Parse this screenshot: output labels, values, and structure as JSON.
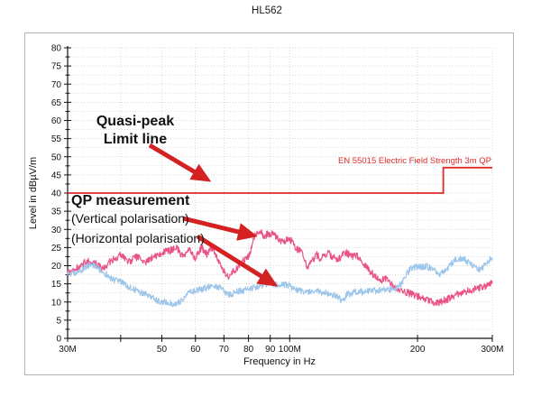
{
  "title": "HL562",
  "chart_data": {
    "type": "line",
    "xscale": "log",
    "xlabel": "Frequency in Hz",
    "ylabel": "Level in dBµV/m",
    "xlim_mhz": [
      30,
      300
    ],
    "ylim": [
      0,
      80
    ],
    "y_tick_step": 5,
    "y_minor_step": 2.5,
    "grid": "dotted",
    "x_ticks": [
      {
        "mhz": 30,
        "label": "30M"
      },
      {
        "mhz": 40,
        "label": ""
      },
      {
        "mhz": 50,
        "label": "50"
      },
      {
        "mhz": 60,
        "label": "60"
      },
      {
        "mhz": 70,
        "label": "70"
      },
      {
        "mhz": 80,
        "label": "80"
      },
      {
        "mhz": 90,
        "label": "90"
      },
      {
        "mhz": 100,
        "label": "100M"
      },
      {
        "mhz": 200,
        "label": "200"
      },
      {
        "mhz": 300,
        "label": "300M"
      }
    ],
    "limit": {
      "label": "EN 55015 Electric Field Strength 3m QP",
      "color": "#e02a2a",
      "points_mhz_db": [
        [
          30,
          40
        ],
        [
          230,
          40
        ],
        [
          230,
          47
        ],
        [
          300,
          47
        ]
      ]
    },
    "series": [
      {
        "name": "QP measurement (Vertical polarisation)",
        "color": "#ea5287",
        "noise_db": 1.0,
        "points_mhz_db": [
          [
            30,
            18
          ],
          [
            31,
            19
          ],
          [
            32,
            19.5
          ],
          [
            33,
            21
          ],
          [
            34,
            21.5
          ],
          [
            35,
            20.5
          ],
          [
            36,
            19.5
          ],
          [
            37,
            20
          ],
          [
            38,
            21.5
          ],
          [
            39,
            22
          ],
          [
            40,
            23
          ],
          [
            41,
            22
          ],
          [
            42,
            21
          ],
          [
            43,
            22
          ],
          [
            44,
            22.5
          ],
          [
            45,
            21.5
          ],
          [
            46,
            21
          ],
          [
            47,
            22
          ],
          [
            48,
            22.5
          ],
          [
            50,
            23.5
          ],
          [
            52,
            24
          ],
          [
            54,
            25
          ],
          [
            55,
            24
          ],
          [
            56,
            22.5
          ],
          [
            58,
            24.5
          ],
          [
            60,
            22
          ],
          [
            61,
            23.5
          ],
          [
            62,
            25
          ],
          [
            63,
            24
          ],
          [
            64,
            23
          ],
          [
            65,
            24.5
          ],
          [
            66,
            24.5
          ],
          [
            67,
            23
          ],
          [
            68,
            21
          ],
          [
            70,
            18.5
          ],
          [
            72,
            17
          ],
          [
            74,
            18.5
          ],
          [
            76,
            20
          ],
          [
            78,
            21.5
          ],
          [
            80,
            22.5
          ],
          [
            81,
            24
          ],
          [
            82,
            26.5
          ],
          [
            83,
            28.5
          ],
          [
            84,
            29
          ],
          [
            85,
            29.5
          ],
          [
            86,
            29
          ],
          [
            87,
            28
          ],
          [
            88,
            28.5
          ],
          [
            90,
            29
          ],
          [
            92,
            28.5
          ],
          [
            94,
            27.5
          ],
          [
            96,
            26.5
          ],
          [
            98,
            27
          ],
          [
            100,
            27.5
          ],
          [
            102,
            26
          ],
          [
            104,
            24.5
          ],
          [
            106,
            24.5
          ],
          [
            108,
            22
          ],
          [
            110,
            19.5
          ],
          [
            112,
            21
          ],
          [
            114,
            22
          ],
          [
            116,
            23
          ],
          [
            118,
            22
          ],
          [
            120,
            22.5
          ],
          [
            123,
            23.5
          ],
          [
            126,
            22.5
          ],
          [
            130,
            21.5
          ],
          [
            133,
            23
          ],
          [
            136,
            23.5
          ],
          [
            140,
            22.5
          ],
          [
            144,
            23
          ],
          [
            148,
            21
          ],
          [
            152,
            19.5
          ],
          [
            156,
            18
          ],
          [
            160,
            17
          ],
          [
            164,
            15.5
          ],
          [
            167,
            17
          ],
          [
            170,
            16
          ],
          [
            174,
            15
          ],
          [
            178,
            14
          ],
          [
            182,
            13.5
          ],
          [
            186,
            13
          ],
          [
            190,
            12.5
          ],
          [
            195,
            12
          ],
          [
            200,
            11.5
          ],
          [
            205,
            11
          ],
          [
            210,
            10.5
          ],
          [
            215,
            10
          ],
          [
            220,
            9.8
          ],
          [
            225,
            10
          ],
          [
            230,
            10.3
          ],
          [
            235,
            10.8
          ],
          [
            240,
            11.2
          ],
          [
            245,
            11.8
          ],
          [
            250,
            12.2
          ],
          [
            255,
            12.6
          ],
          [
            260,
            13
          ],
          [
            266,
            13.3
          ],
          [
            272,
            13.6
          ],
          [
            278,
            13.8
          ],
          [
            284,
            14.2
          ],
          [
            290,
            14.5
          ],
          [
            295,
            14.8
          ],
          [
            300,
            15.2
          ]
        ]
      },
      {
        "name": "QP measurement (Horizontal polarisation)",
        "color": "#9cc5ea",
        "noise_db": 0.9,
        "points_mhz_db": [
          [
            30,
            17.5
          ],
          [
            31,
            18
          ],
          [
            32,
            18.5
          ],
          [
            33,
            19.5
          ],
          [
            34,
            20.5
          ],
          [
            35,
            20
          ],
          [
            36,
            18.5
          ],
          [
            37,
            17.5
          ],
          [
            38,
            16.5
          ],
          [
            39,
            16
          ],
          [
            40,
            15.5
          ],
          [
            42,
            14
          ],
          [
            44,
            13
          ],
          [
            46,
            12
          ],
          [
            48,
            10.8
          ],
          [
            50,
            10
          ],
          [
            52,
            9.6
          ],
          [
            54,
            9.5
          ],
          [
            56,
            10.5
          ],
          [
            58,
            12.5
          ],
          [
            60,
            13
          ],
          [
            62,
            13.5
          ],
          [
            64,
            14
          ],
          [
            66,
            14.5
          ],
          [
            68,
            14
          ],
          [
            70,
            13
          ],
          [
            72,
            12
          ],
          [
            74,
            12.5
          ],
          [
            76,
            13
          ],
          [
            78,
            13.2
          ],
          [
            80,
            13.5
          ],
          [
            83,
            14
          ],
          [
            86,
            14.5
          ],
          [
            89,
            15.2
          ],
          [
            92,
            14.8
          ],
          [
            95,
            14.5
          ],
          [
            98,
            14.8
          ],
          [
            100,
            14.5
          ],
          [
            103,
            13.5
          ],
          [
            106,
            13
          ],
          [
            110,
            12.8
          ],
          [
            114,
            13
          ],
          [
            118,
            12.8
          ],
          [
            122,
            12.5
          ],
          [
            126,
            12
          ],
          [
            130,
            11.5
          ],
          [
            133,
            10
          ],
          [
            136,
            12
          ],
          [
            140,
            12.5
          ],
          [
            144,
            13
          ],
          [
            148,
            12.8
          ],
          [
            152,
            13
          ],
          [
            156,
            13.2
          ],
          [
            160,
            13
          ],
          [
            164,
            13.5
          ],
          [
            168,
            13.2
          ],
          [
            172,
            13.5
          ],
          [
            176,
            13.8
          ],
          [
            180,
            14
          ],
          [
            184,
            15.5
          ],
          [
            188,
            17.5
          ],
          [
            192,
            19
          ],
          [
            196,
            19.5
          ],
          [
            200,
            19.8
          ],
          [
            205,
            19.5
          ],
          [
            210,
            19.8
          ],
          [
            215,
            19.2
          ],
          [
            220,
            18.5
          ],
          [
            225,
            17.8
          ],
          [
            228,
            18
          ],
          [
            232,
            18.5
          ],
          [
            236,
            19.5
          ],
          [
            240,
            20.5
          ],
          [
            245,
            21.5
          ],
          [
            250,
            22
          ],
          [
            255,
            21.8
          ],
          [
            260,
            21.5
          ],
          [
            265,
            20.5
          ],
          [
            270,
            19.8
          ],
          [
            275,
            19.2
          ],
          [
            280,
            18.8
          ],
          [
            285,
            19.5
          ],
          [
            290,
            20.5
          ],
          [
            295,
            21.5
          ],
          [
            300,
            22.3
          ]
        ]
      }
    ]
  },
  "annotations": {
    "quasi_peak_line1": "Quasi-peak",
    "quasi_peak_line2": "Limit line",
    "qp_measurement": "QP measurement",
    "vertical": "(Vertical polarisation)",
    "horizontal": "(Horizontal polarisation)",
    "arrow_color": "#d42222",
    "arrows": [
      {
        "name": "limit-line-arrow",
        "from": [
          166,
          161
        ],
        "to": [
          230,
          199
        ]
      },
      {
        "name": "vertical-pol-arrow",
        "from": [
          203,
          242
        ],
        "to": [
          281,
          261
        ]
      },
      {
        "name": "horizontal-pol-arrow",
        "from": [
          219,
          262
        ],
        "to": [
          304,
          315
        ]
      }
    ]
  },
  "colors": {
    "grid": "#c9c9c9",
    "axis": "#111111",
    "frame_border": "#b3b3b3",
    "background": "#ffffff"
  }
}
